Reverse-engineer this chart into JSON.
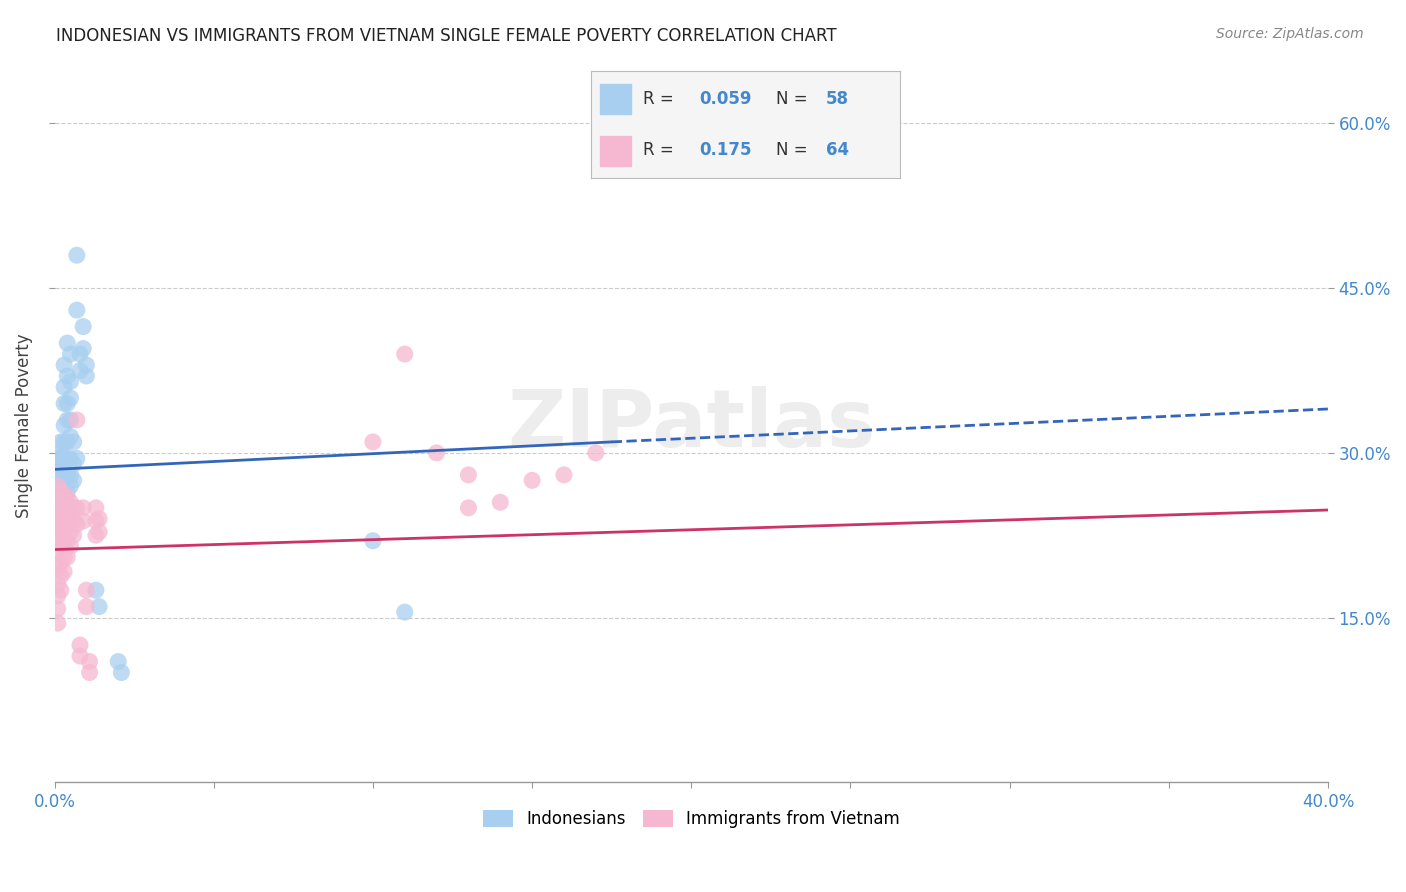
{
  "title": "INDONESIAN VS IMMIGRANTS FROM VIETNAM SINGLE FEMALE POVERTY CORRELATION CHART",
  "source": "Source: ZipAtlas.com",
  "ylabel": "Single Female Poverty",
  "y_ticks": [
    0.15,
    0.3,
    0.45,
    0.6
  ],
  "y_tick_labels": [
    "15.0%",
    "30.0%",
    "45.0%",
    "60.0%"
  ],
  "watermark": "ZIPatlas",
  "legend_blue_label": "Indonesians",
  "legend_pink_label": "Immigrants from Vietnam",
  "blue_color": "#a8cff0",
  "pink_color": "#f5b8d0",
  "blue_line_color": "#3366bb",
  "pink_line_color": "#cc3366",
  "blue_scatter": [
    [
      0.0,
      0.29
    ],
    [
      0.001,
      0.295
    ],
    [
      0.001,
      0.285
    ],
    [
      0.001,
      0.27
    ],
    [
      0.002,
      0.265
    ],
    [
      0.002,
      0.278
    ],
    [
      0.002,
      0.31
    ],
    [
      0.002,
      0.3
    ],
    [
      0.002,
      0.295
    ],
    [
      0.002,
      0.255
    ],
    [
      0.002,
      0.245
    ],
    [
      0.003,
      0.38
    ],
    [
      0.003,
      0.36
    ],
    [
      0.003,
      0.345
    ],
    [
      0.003,
      0.325
    ],
    [
      0.003,
      0.31
    ],
    [
      0.003,
      0.295
    ],
    [
      0.003,
      0.28
    ],
    [
      0.003,
      0.275
    ],
    [
      0.003,
      0.265
    ],
    [
      0.003,
      0.26
    ],
    [
      0.004,
      0.4
    ],
    [
      0.004,
      0.37
    ],
    [
      0.004,
      0.345
    ],
    [
      0.004,
      0.33
    ],
    [
      0.004,
      0.31
    ],
    [
      0.004,
      0.295
    ],
    [
      0.004,
      0.28
    ],
    [
      0.004,
      0.265
    ],
    [
      0.004,
      0.25
    ],
    [
      0.004,
      0.24
    ],
    [
      0.005,
      0.39
    ],
    [
      0.005,
      0.365
    ],
    [
      0.005,
      0.35
    ],
    [
      0.005,
      0.33
    ],
    [
      0.005,
      0.315
    ],
    [
      0.005,
      0.295
    ],
    [
      0.005,
      0.28
    ],
    [
      0.005,
      0.27
    ],
    [
      0.006,
      0.31
    ],
    [
      0.006,
      0.29
    ],
    [
      0.006,
      0.275
    ],
    [
      0.007,
      0.48
    ],
    [
      0.007,
      0.43
    ],
    [
      0.007,
      0.295
    ],
    [
      0.008,
      0.39
    ],
    [
      0.008,
      0.375
    ],
    [
      0.009,
      0.415
    ],
    [
      0.009,
      0.395
    ],
    [
      0.01,
      0.38
    ],
    [
      0.01,
      0.37
    ],
    [
      0.013,
      0.175
    ],
    [
      0.014,
      0.16
    ],
    [
      0.02,
      0.11
    ],
    [
      0.021,
      0.1
    ],
    [
      0.1,
      0.22
    ],
    [
      0.11,
      0.155
    ]
  ],
  "pink_scatter": [
    [
      0.0,
      0.255
    ],
    [
      0.0,
      0.245
    ],
    [
      0.0,
      0.235
    ],
    [
      0.001,
      0.27
    ],
    [
      0.001,
      0.26
    ],
    [
      0.001,
      0.25
    ],
    [
      0.001,
      0.24
    ],
    [
      0.001,
      0.23
    ],
    [
      0.001,
      0.22
    ],
    [
      0.001,
      0.21
    ],
    [
      0.001,
      0.195
    ],
    [
      0.001,
      0.18
    ],
    [
      0.001,
      0.17
    ],
    [
      0.001,
      0.158
    ],
    [
      0.001,
      0.145
    ],
    [
      0.002,
      0.265
    ],
    [
      0.002,
      0.25
    ],
    [
      0.002,
      0.24
    ],
    [
      0.002,
      0.228
    ],
    [
      0.002,
      0.215
    ],
    [
      0.002,
      0.2
    ],
    [
      0.002,
      0.188
    ],
    [
      0.002,
      0.175
    ],
    [
      0.003,
      0.258
    ],
    [
      0.003,
      0.245
    ],
    [
      0.003,
      0.232
    ],
    [
      0.003,
      0.218
    ],
    [
      0.003,
      0.205
    ],
    [
      0.003,
      0.192
    ],
    [
      0.004,
      0.26
    ],
    [
      0.004,
      0.248
    ],
    [
      0.004,
      0.235
    ],
    [
      0.004,
      0.22
    ],
    [
      0.004,
      0.205
    ],
    [
      0.005,
      0.255
    ],
    [
      0.005,
      0.242
    ],
    [
      0.005,
      0.228
    ],
    [
      0.005,
      0.215
    ],
    [
      0.006,
      0.25
    ],
    [
      0.006,
      0.238
    ],
    [
      0.006,
      0.225
    ],
    [
      0.007,
      0.33
    ],
    [
      0.007,
      0.25
    ],
    [
      0.007,
      0.235
    ],
    [
      0.008,
      0.125
    ],
    [
      0.008,
      0.115
    ],
    [
      0.009,
      0.25
    ],
    [
      0.009,
      0.238
    ],
    [
      0.01,
      0.175
    ],
    [
      0.01,
      0.16
    ],
    [
      0.011,
      0.11
    ],
    [
      0.011,
      0.1
    ],
    [
      0.013,
      0.25
    ],
    [
      0.013,
      0.238
    ],
    [
      0.013,
      0.225
    ],
    [
      0.014,
      0.24
    ],
    [
      0.014,
      0.228
    ],
    [
      0.1,
      0.31
    ],
    [
      0.11,
      0.39
    ],
    [
      0.12,
      0.3
    ],
    [
      0.13,
      0.25
    ],
    [
      0.13,
      0.28
    ],
    [
      0.14,
      0.255
    ],
    [
      0.15,
      0.275
    ],
    [
      0.16,
      0.28
    ],
    [
      0.17,
      0.3
    ]
  ],
  "blue_line": {
    "x0": 0.0,
    "y0": 0.285,
    "x1": 0.175,
    "y1": 0.31
  },
  "blue_dashed_line": {
    "x0": 0.175,
    "y0": 0.31,
    "x1": 0.4,
    "y1": 0.34
  },
  "pink_line": {
    "x0": 0.0,
    "y0": 0.212,
    "x1": 0.4,
    "y1": 0.248
  },
  "xlim": [
    0.0,
    0.4
  ],
  "ylim": [
    0.0,
    0.65
  ],
  "x_tick_count": 9
}
